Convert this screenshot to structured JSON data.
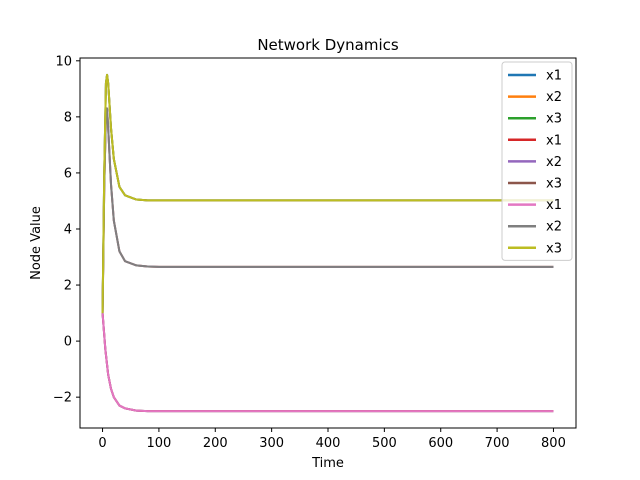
{
  "chart_data": {
    "type": "line",
    "title": "Network Dynamics",
    "xlabel": "Time",
    "ylabel": "Node Value",
    "xlim": [
      -40,
      840
    ],
    "ylim": [
      -3.1,
      10.1
    ],
    "xticks": [
      0,
      100,
      200,
      300,
      400,
      500,
      600,
      700,
      800
    ],
    "yticks": [
      -2,
      0,
      2,
      4,
      6,
      8,
      10
    ],
    "ytick_labels": [
      "−2",
      "0",
      "2",
      "4",
      "6",
      "8",
      "10"
    ],
    "grid": false,
    "legend_position": "top-right",
    "series": [
      {
        "name": "x1",
        "color": "#1f77b4",
        "x": [
          0,
          5,
          10,
          15,
          20,
          30,
          40,
          60,
          80,
          100,
          200,
          400,
          600,
          800
        ],
        "y": [
          1,
          -0.3,
          -1.2,
          -1.7,
          -2.0,
          -2.3,
          -2.4,
          -2.48,
          -2.5,
          -2.5,
          -2.5,
          -2.5,
          -2.5,
          -2.5
        ]
      },
      {
        "name": "x2",
        "color": "#ff7f0e",
        "x": [
          0,
          3,
          6,
          8,
          10,
          15,
          20,
          30,
          40,
          60,
          80,
          100,
          200,
          400,
          600,
          800
        ],
        "y": [
          1,
          5.5,
          8.1,
          8.3,
          7.6,
          5.6,
          4.3,
          3.2,
          2.85,
          2.7,
          2.66,
          2.65,
          2.65,
          2.65,
          2.65,
          2.65
        ]
      },
      {
        "name": "x3",
        "color": "#2ca02c",
        "x": [
          0,
          3,
          6,
          8,
          10,
          15,
          20,
          30,
          40,
          60,
          80,
          100,
          200,
          400,
          600,
          800
        ],
        "y": [
          1,
          6.0,
          9.2,
          9.5,
          9.2,
          7.6,
          6.5,
          5.5,
          5.2,
          5.05,
          5.02,
          5.02,
          5.02,
          5.02,
          5.02,
          5.02
        ]
      },
      {
        "name": "x1",
        "color": "#d62728",
        "x": [
          0,
          5,
          10,
          15,
          20,
          30,
          40,
          60,
          80,
          100,
          200,
          400,
          600,
          800
        ],
        "y": [
          1,
          -0.3,
          -1.2,
          -1.7,
          -2.0,
          -2.3,
          -2.4,
          -2.48,
          -2.5,
          -2.5,
          -2.5,
          -2.5,
          -2.5,
          -2.5
        ]
      },
      {
        "name": "x2",
        "color": "#9467bd",
        "x": [
          0,
          3,
          6,
          8,
          10,
          15,
          20,
          30,
          40,
          60,
          80,
          100,
          200,
          400,
          600,
          800
        ],
        "y": [
          1,
          5.5,
          8.1,
          8.3,
          7.6,
          5.6,
          4.3,
          3.2,
          2.85,
          2.7,
          2.66,
          2.65,
          2.65,
          2.65,
          2.65,
          2.65
        ]
      },
      {
        "name": "x3",
        "color": "#8c564b",
        "x": [
          0,
          3,
          6,
          8,
          10,
          15,
          20,
          30,
          40,
          60,
          80,
          100,
          200,
          400,
          600,
          800
        ],
        "y": [
          1,
          6.0,
          9.2,
          9.5,
          9.2,
          7.6,
          6.5,
          5.5,
          5.2,
          5.05,
          5.02,
          5.02,
          5.02,
          5.02,
          5.02,
          5.02
        ]
      },
      {
        "name": "x1",
        "color": "#e377c2",
        "x": [
          0,
          5,
          10,
          15,
          20,
          30,
          40,
          60,
          80,
          100,
          200,
          400,
          600,
          800
        ],
        "y": [
          1,
          -0.3,
          -1.2,
          -1.7,
          -2.0,
          -2.3,
          -2.4,
          -2.48,
          -2.5,
          -2.5,
          -2.5,
          -2.5,
          -2.5,
          -2.5
        ]
      },
      {
        "name": "x2",
        "color": "#7f7f7f",
        "x": [
          0,
          3,
          6,
          8,
          10,
          15,
          20,
          30,
          40,
          60,
          80,
          100,
          200,
          400,
          600,
          800
        ],
        "y": [
          1,
          5.5,
          8.1,
          8.3,
          7.6,
          5.6,
          4.3,
          3.2,
          2.85,
          2.7,
          2.66,
          2.65,
          2.65,
          2.65,
          2.65,
          2.65
        ]
      },
      {
        "name": "x3",
        "color": "#bcbd22",
        "x": [
          0,
          3,
          6,
          8,
          10,
          15,
          20,
          30,
          40,
          60,
          80,
          100,
          200,
          400,
          600,
          800
        ],
        "y": [
          1,
          6.0,
          9.2,
          9.5,
          9.2,
          7.6,
          6.5,
          5.5,
          5.2,
          5.05,
          5.02,
          5.02,
          5.02,
          5.02,
          5.02,
          5.02
        ]
      }
    ]
  }
}
